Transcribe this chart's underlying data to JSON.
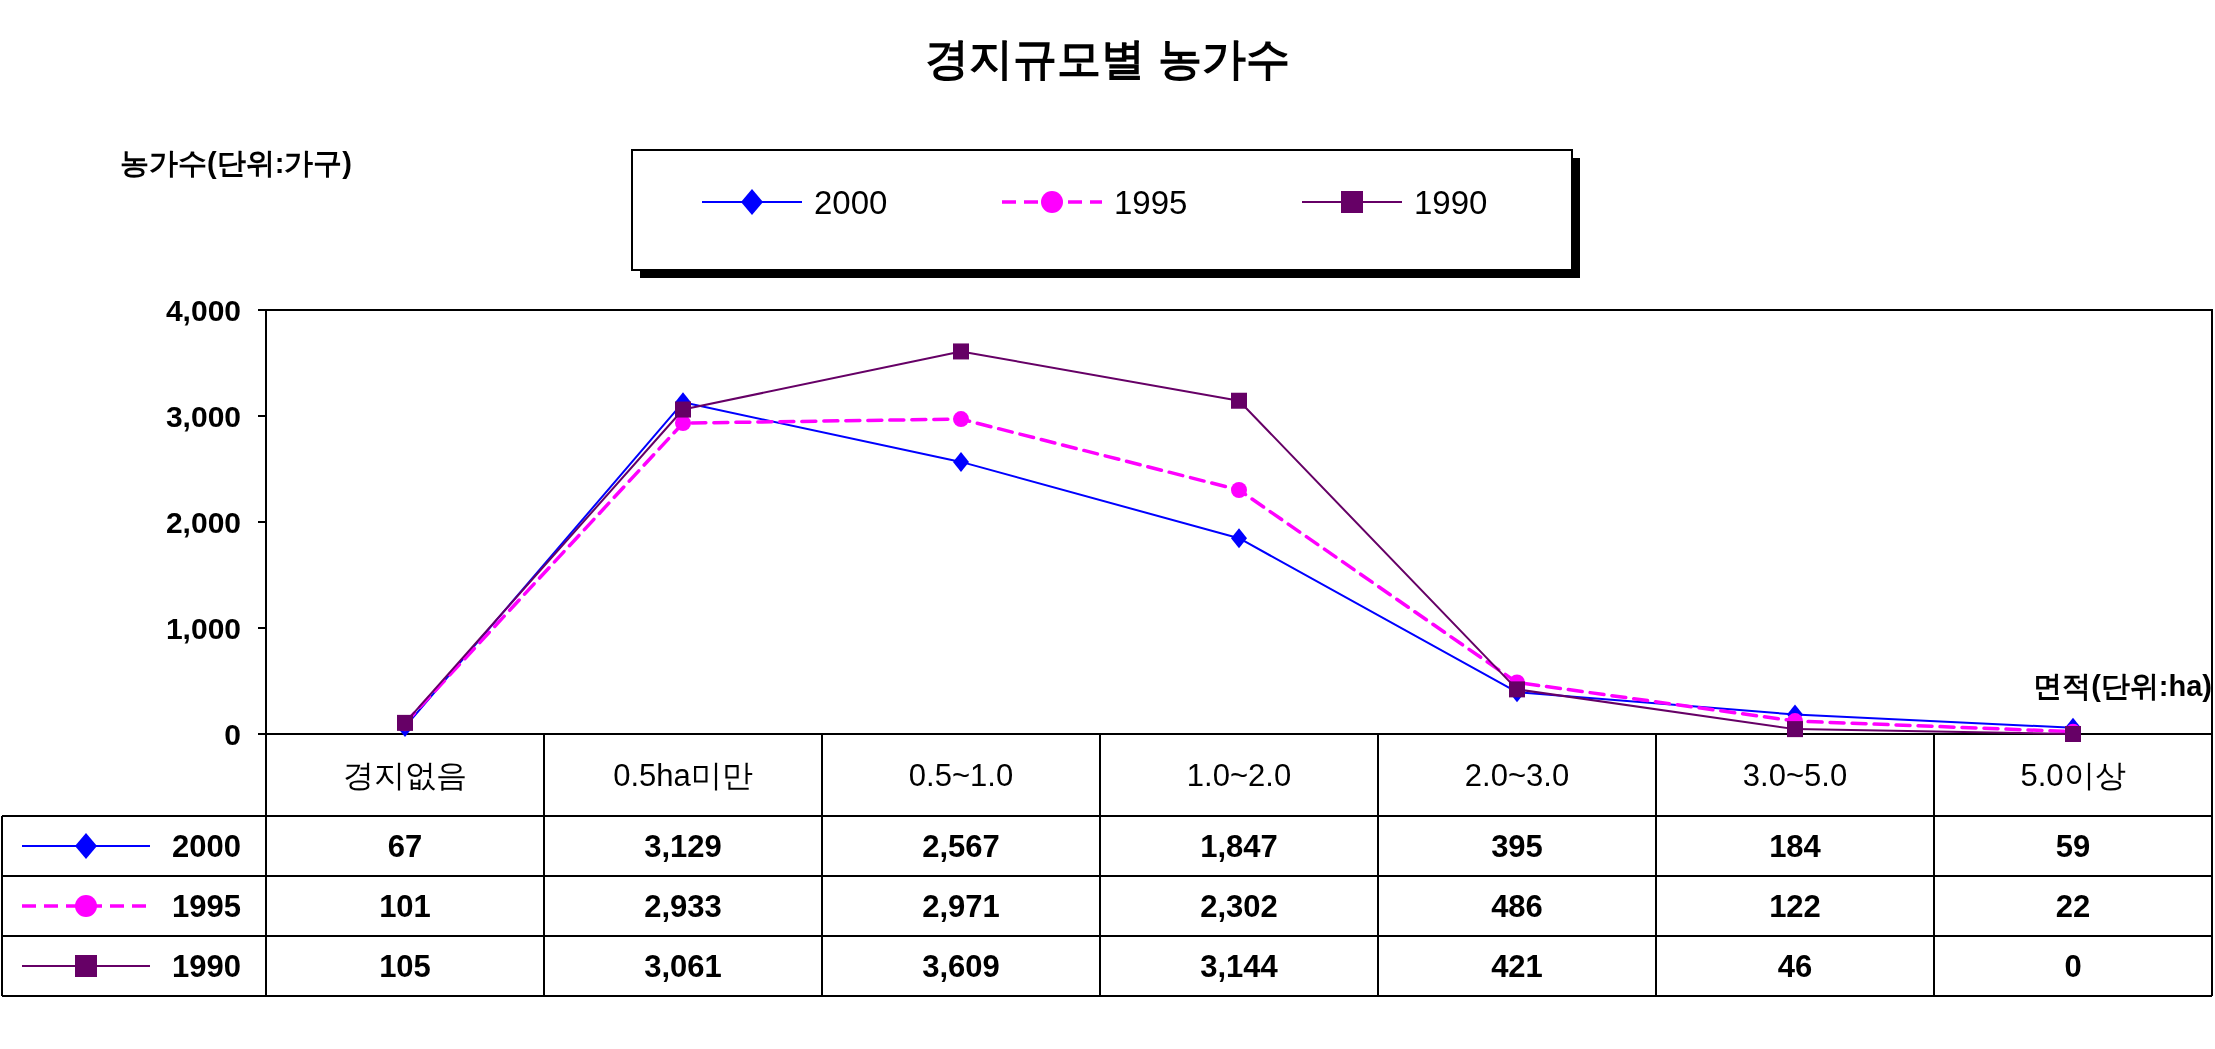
{
  "chart_data": {
    "type": "line",
    "title": "경지규모별 농가수",
    "ylabel": "농가수(단위:가구)",
    "xlabel": "면적(단위:ha)",
    "categories": [
      "경지없음",
      "0.5ha미만",
      "0.5~1.0",
      "1.0~2.0",
      "2.0~3.0",
      "3.0~5.0",
      "5.0이상"
    ],
    "series": [
      {
        "name": "2000",
        "color": "#0000ff",
        "marker": "diamond",
        "line_style": "solid",
        "values": [
          67,
          3129,
          2567,
          1847,
          395,
          184,
          59
        ],
        "value_labels": [
          "67",
          "3,129",
          "2,567",
          "1,847",
          "395",
          "184",
          "59"
        ]
      },
      {
        "name": "1995",
        "color": "#ff00ff",
        "marker": "circle",
        "line_style": "dashed",
        "values": [
          101,
          2933,
          2971,
          2302,
          486,
          122,
          22
        ],
        "value_labels": [
          "101",
          "2,933",
          "2,971",
          "2,302",
          "486",
          "122",
          "22"
        ]
      },
      {
        "name": "1990",
        "color": "#660066",
        "marker": "square",
        "line_style": "solid",
        "values": [
          105,
          3061,
          3609,
          3144,
          421,
          46,
          0
        ],
        "value_labels": [
          "105",
          "3,061",
          "3,609",
          "3,144",
          "421",
          "46",
          "0"
        ]
      }
    ],
    "ylim": [
      0,
      4000
    ],
    "yticks": [
      {
        "value": 0,
        "label": "0"
      },
      {
        "value": 1000,
        "label": "1,000"
      },
      {
        "value": 2000,
        "label": "2,000"
      },
      {
        "value": 3000,
        "label": "3,000"
      },
      {
        "value": 4000,
        "label": "4,000"
      }
    ],
    "grid": false,
    "legend": "top"
  }
}
